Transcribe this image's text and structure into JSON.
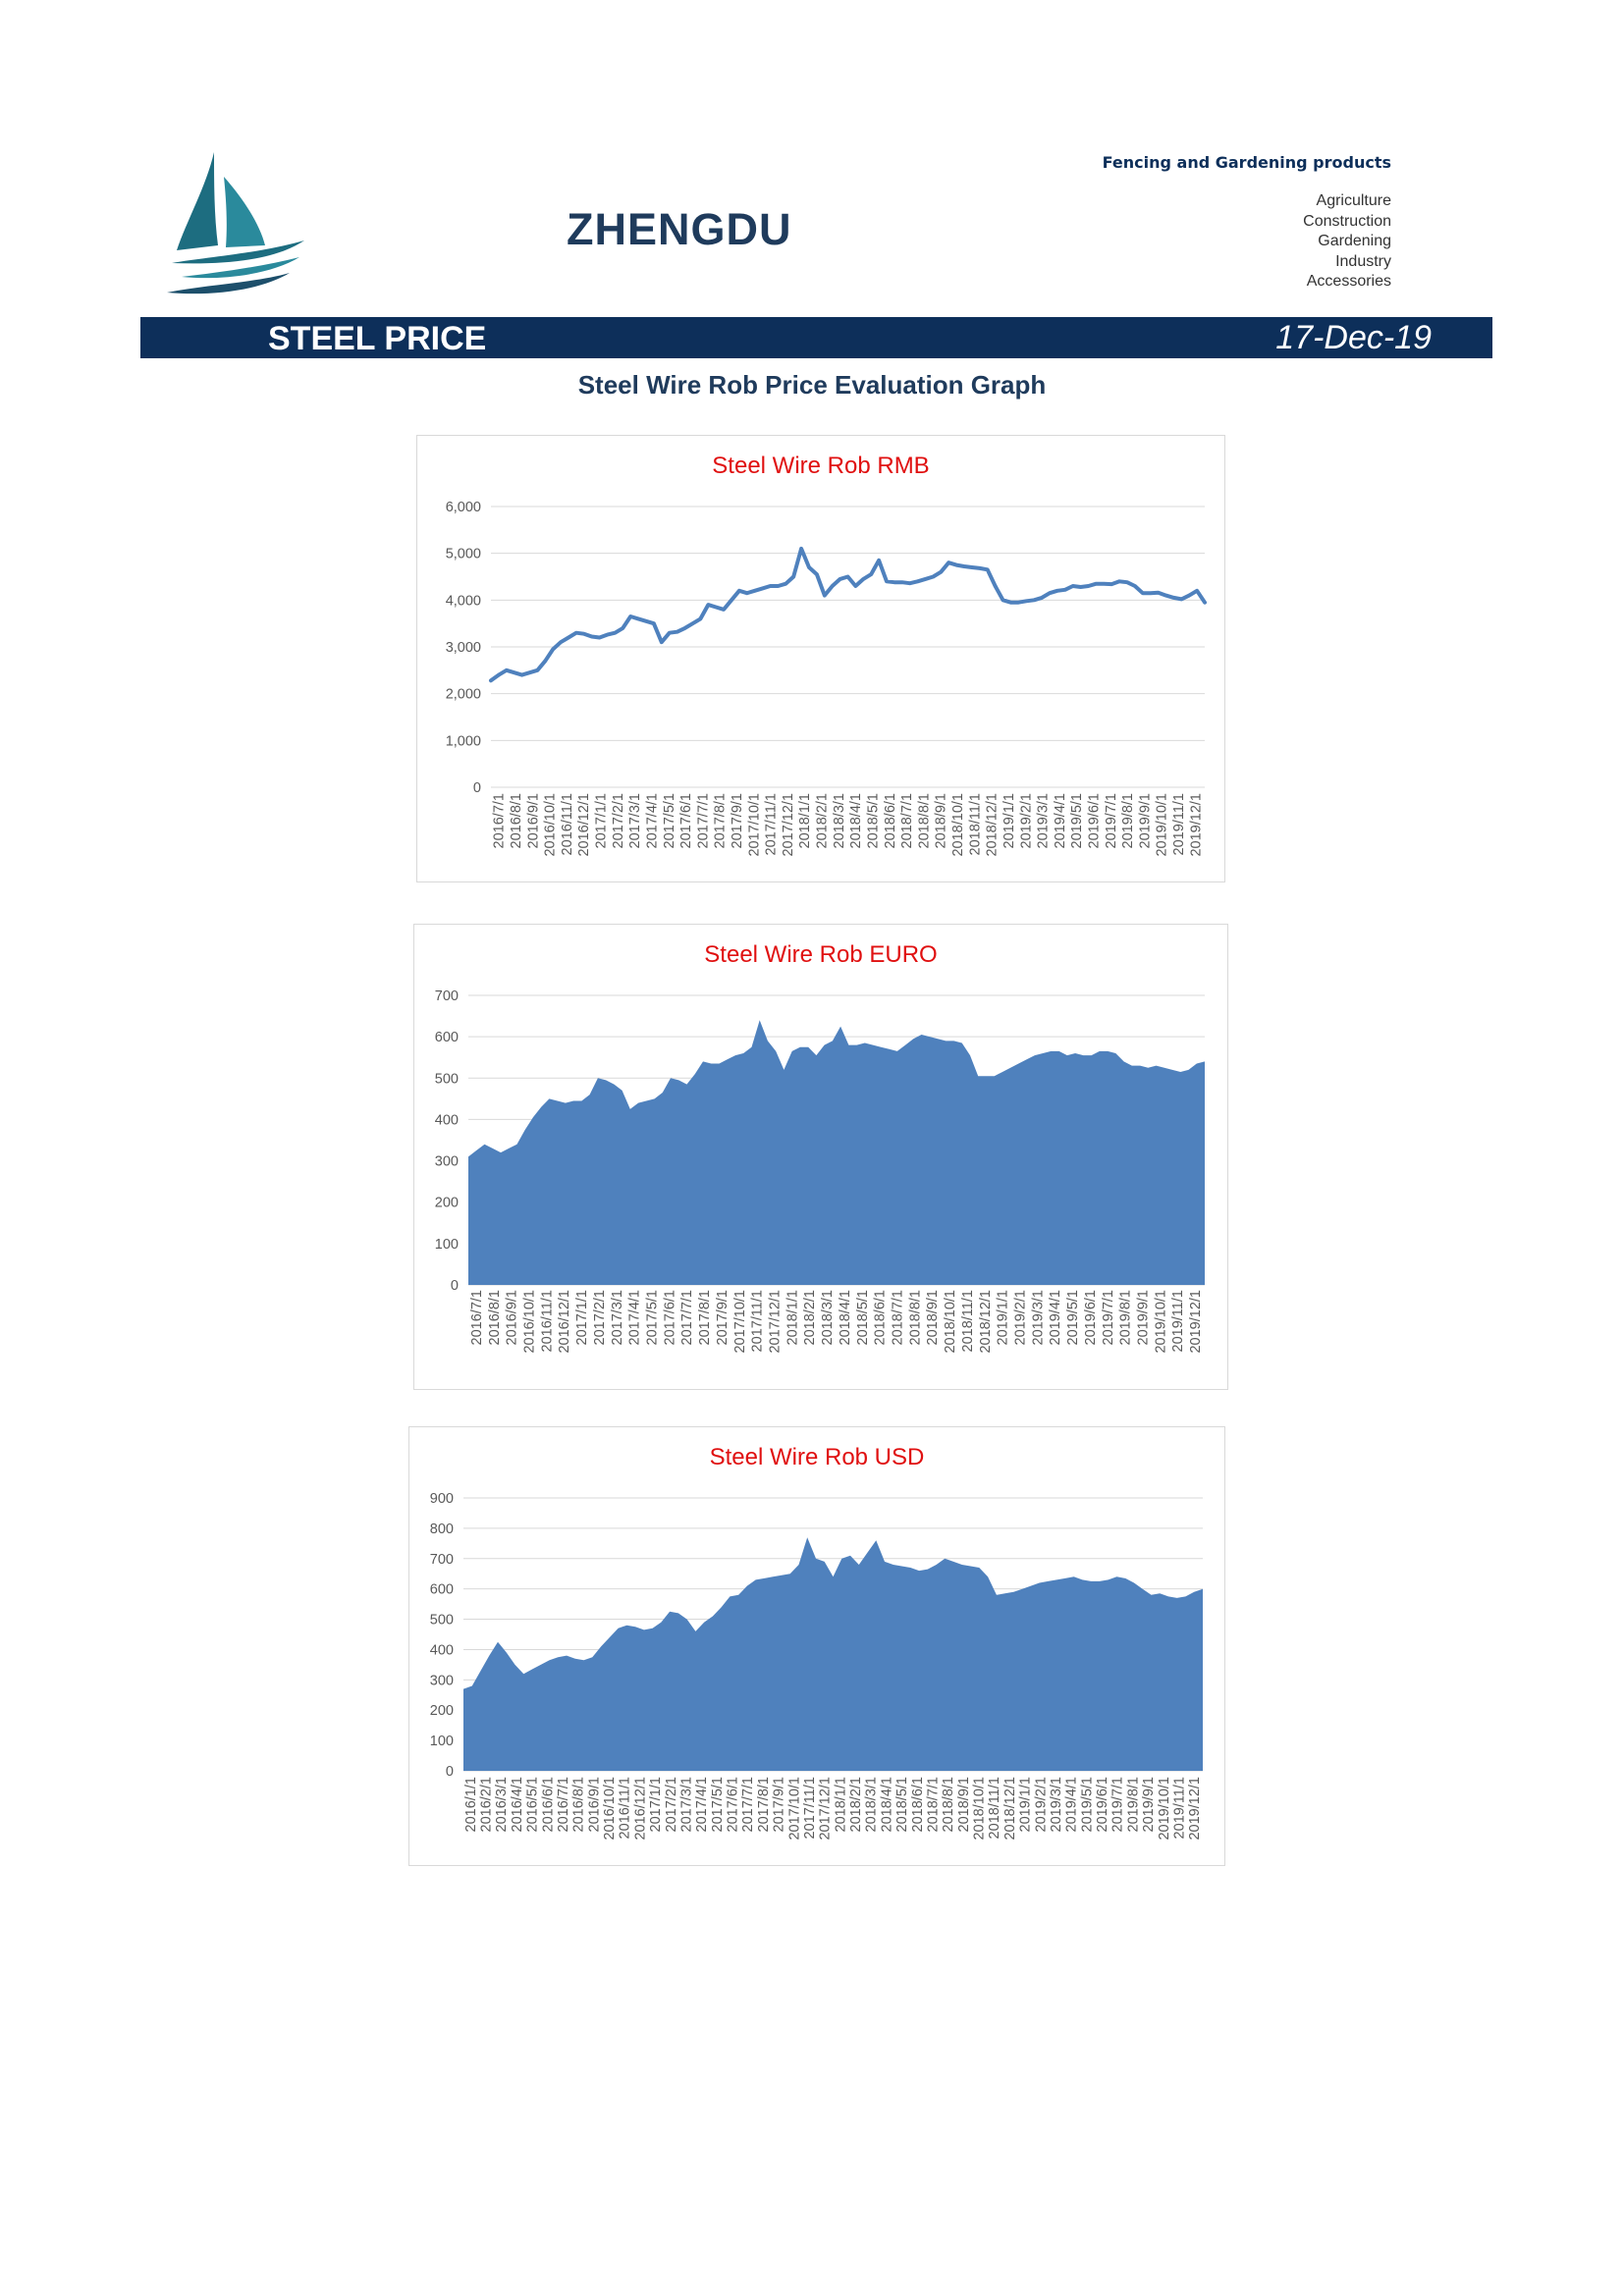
{
  "header": {
    "company": "ZHENGDU",
    "tagline": "Fencing and Gardening products",
    "categories": [
      "Agriculture",
      "Construction",
      "Gardening",
      "Industry",
      "Accessories"
    ]
  },
  "banner": {
    "title": "STEEL PRICE",
    "date": "17-Dec-19"
  },
  "page_title": "Steel Wire Rob Price Evaluation Graph",
  "chart_data": [
    {
      "type": "line",
      "title": "Steel Wire Rob RMB",
      "color": "#4f81bd",
      "ylim": [
        0,
        6000
      ],
      "yticks": [
        0,
        1000,
        2000,
        3000,
        4000,
        5000,
        6000
      ],
      "ytick_labels": [
        "0",
        "1,000",
        "2,000",
        "3,000",
        "4,000",
        "5,000",
        "6,000"
      ],
      "xtick_labels": [
        "2016/7/1",
        "2016/8/1",
        "2016/9/1",
        "2016/10/1",
        "2016/11/1",
        "2016/12/1",
        "2017/1/1",
        "2017/2/1",
        "2017/3/1",
        "2017/4/1",
        "2017/5/1",
        "2017/6/1",
        "2017/7/1",
        "2017/8/1",
        "2017/9/1",
        "2017/10/1",
        "2017/11/1",
        "2017/12/1",
        "2018/1/1",
        "2018/2/1",
        "2018/3/1",
        "2018/4/1",
        "2018/5/1",
        "2018/6/1",
        "2018/7/1",
        "2018/8/1",
        "2018/9/1",
        "2018/10/1",
        "2018/11/1",
        "2018/12/1",
        "2019/1/1",
        "2019/2/1",
        "2019/3/1",
        "2019/4/1",
        "2019/5/1",
        "2019/6/1",
        "2019/7/1",
        "2019/8/1",
        "2019/9/1",
        "2019/10/1",
        "2019/11/1",
        "2019/12/1"
      ],
      "values": [
        2280,
        2400,
        2500,
        2450,
        2400,
        2450,
        2500,
        2700,
        2950,
        3100,
        3200,
        3300,
        3280,
        3220,
        3200,
        3260,
        3300,
        3400,
        3650,
        3600,
        3550,
        3500,
        3100,
        3300,
        3320,
        3400,
        3500,
        3600,
        3900,
        3850,
        3800,
        4000,
        4200,
        4150,
        4200,
        4250,
        4300,
        4300,
        4350,
        4500,
        5100,
        4700,
        4550,
        4100,
        4300,
        4450,
        4500,
        4300,
        4450,
        4550,
        4850,
        4400,
        4380,
        4380,
        4360,
        4400,
        4450,
        4500,
        4600,
        4800,
        4750,
        4720,
        4700,
        4680,
        4650,
        4300,
        4000,
        3950,
        3950,
        3980,
        4000,
        4050,
        4150,
        4200,
        4220,
        4300,
        4280,
        4300,
        4350,
        4350,
        4340,
        4400,
        4380,
        4300,
        4150,
        4150,
        4160,
        4100,
        4050,
        4020,
        4100,
        4200,
        3950
      ]
    },
    {
      "type": "area",
      "title": "Steel Wire Rob EURO",
      "color": "#4f81bd",
      "ylim": [
        0,
        700
      ],
      "yticks": [
        0,
        100,
        200,
        300,
        400,
        500,
        600,
        700
      ],
      "ytick_labels": [
        "0",
        "100",
        "200",
        "300",
        "400",
        "500",
        "600",
        "700"
      ],
      "xtick_labels": [
        "2016/7/1",
        "2016/8/1",
        "2016/9/1",
        "2016/10/1",
        "2016/11/1",
        "2016/12/1",
        "2017/1/1",
        "2017/2/1",
        "2017/3/1",
        "2017/4/1",
        "2017/5/1",
        "2017/6/1",
        "2017/7/1",
        "2017/8/1",
        "2017/9/1",
        "2017/10/1",
        "2017/11/1",
        "2017/12/1",
        "2018/1/1",
        "2018/2/1",
        "2018/3/1",
        "2018/4/1",
        "2018/5/1",
        "2018/6/1",
        "2018/7/1",
        "2018/8/1",
        "2018/9/1",
        "2018/10/1",
        "2018/11/1",
        "2018/12/1",
        "2019/1/1",
        "2019/2/1",
        "2019/3/1",
        "2019/4/1",
        "2019/5/1",
        "2019/6/1",
        "2019/7/1",
        "2019/8/1",
        "2019/9/1",
        "2019/10/1",
        "2019/11/1",
        "2019/12/1"
      ],
      "values": [
        310,
        325,
        340,
        330,
        320,
        330,
        340,
        375,
        405,
        430,
        450,
        445,
        440,
        445,
        445,
        460,
        500,
        495,
        485,
        470,
        425,
        440,
        445,
        450,
        465,
        500,
        495,
        485,
        510,
        540,
        535,
        535,
        545,
        555,
        560,
        575,
        640,
        590,
        565,
        520,
        565,
        575,
        575,
        555,
        580,
        590,
        625,
        580,
        580,
        585,
        580,
        575,
        570,
        565,
        580,
        595,
        605,
        600,
        595,
        590,
        590,
        585,
        555,
        505,
        505,
        505,
        515,
        525,
        535,
        545,
        555,
        560,
        565,
        565,
        555,
        560,
        555,
        555,
        565,
        565,
        560,
        540,
        530,
        530,
        525,
        530,
        525,
        520,
        515,
        520,
        535,
        540
      ]
    },
    {
      "type": "area",
      "title": "Steel Wire Rob USD",
      "color": "#4f81bd",
      "ylim": [
        0,
        900
      ],
      "yticks": [
        0,
        100,
        200,
        300,
        400,
        500,
        600,
        700,
        800,
        900
      ],
      "ytick_labels": [
        "0",
        "100",
        "200",
        "300",
        "400",
        "500",
        "600",
        "700",
        "800",
        "900"
      ],
      "xtick_labels": [
        "2016/1/1",
        "2016/2/1",
        "2016/3/1",
        "2016/4/1",
        "2016/5/1",
        "2016/6/1",
        "2016/7/1",
        "2016/8/1",
        "2016/9/1",
        "2016/10/1",
        "2016/11/1",
        "2016/12/1",
        "2017/1/1",
        "2017/2/1",
        "2017/3/1",
        "2017/4/1",
        "2017/5/1",
        "2017/6/1",
        "2017/7/1",
        "2017/8/1",
        "2017/9/1",
        "2017/10/1",
        "2017/11/1",
        "2017/12/1",
        "2018/1/1",
        "2018/2/1",
        "2018/3/1",
        "2018/4/1",
        "2018/5/1",
        "2018/6/1",
        "2018/7/1",
        "2018/8/1",
        "2018/9/1",
        "2018/10/1",
        "2018/11/1",
        "2018/12/1",
        "2019/1/1",
        "2019/2/1",
        "2019/3/1",
        "2019/4/1",
        "2019/5/1",
        "2019/6/1",
        "2019/7/1",
        "2019/8/1",
        "2019/9/1",
        "2019/10/1",
        "2019/11/1",
        "2019/12/1"
      ],
      "values": [
        270,
        280,
        330,
        380,
        425,
        390,
        350,
        320,
        335,
        350,
        365,
        375,
        380,
        370,
        365,
        375,
        410,
        440,
        470,
        480,
        475,
        465,
        470,
        490,
        525,
        520,
        500,
        460,
        490,
        510,
        540,
        575,
        580,
        610,
        630,
        635,
        640,
        645,
        650,
        680,
        770,
        700,
        690,
        640,
        700,
        710,
        680,
        720,
        760,
        690,
        680,
        675,
        670,
        660,
        665,
        680,
        700,
        690,
        680,
        675,
        670,
        640,
        580,
        585,
        590,
        600,
        610,
        620,
        625,
        630,
        635,
        640,
        630,
        625,
        625,
        630,
        640,
        635,
        620,
        600,
        580,
        585,
        575,
        570,
        575,
        590,
        600
      ]
    }
  ]
}
